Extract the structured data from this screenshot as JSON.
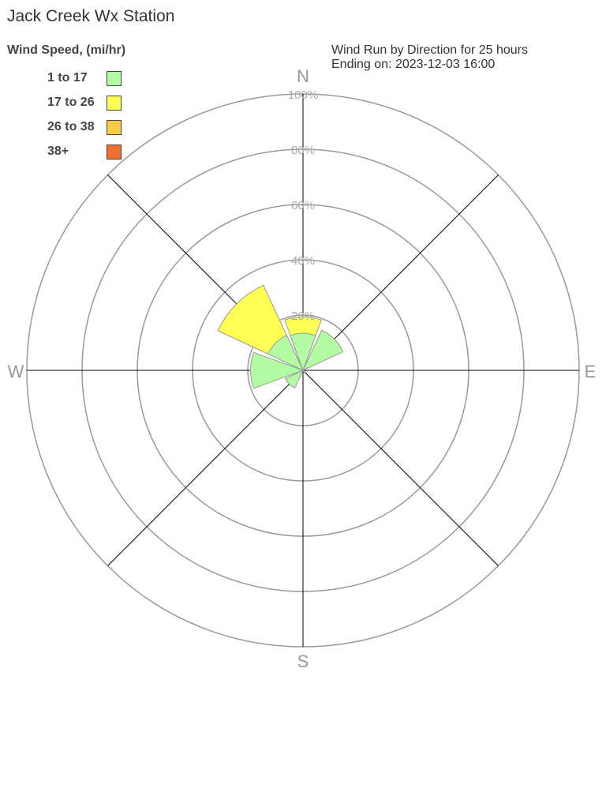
{
  "title": "Jack Creek Wx Station",
  "chart_data": {
    "type": "wind-rose",
    "legend_title": "Wind Speed, (mi/hr)",
    "subtitle_line1": "Wind Run by Direction for 25 hours",
    "subtitle_line2": "Ending on: 2023-12-03 16:00",
    "directions": [
      "N",
      "NE",
      "E",
      "SE",
      "S",
      "SW",
      "W",
      "NW"
    ],
    "compass_labels": {
      "N": "N",
      "E": "E",
      "S": "S",
      "W": "W"
    },
    "ring_labels": [
      "20%",
      "40%",
      "60%",
      "80%",
      "100%"
    ],
    "ring_values": [
      20,
      40,
      60,
      80,
      100
    ],
    "rmax": 100,
    "series": [
      {
        "name": "1 to 17",
        "color": "#b3fca3",
        "values": [
          13.4,
          16,
          0,
          1,
          0,
          7,
          19,
          14
        ]
      },
      {
        "name": "17 to 26",
        "color": "#ffff55",
        "values": [
          6,
          0,
          0,
          0,
          0,
          0,
          0,
          20
        ]
      },
      {
        "name": "26 to 38",
        "color": "#f7cb47",
        "values": [
          0,
          0,
          0,
          0,
          0,
          0,
          0,
          0
        ]
      },
      {
        "name": "38+",
        "color": "#ee6f2e",
        "values": [
          0,
          0,
          0,
          0,
          0,
          0,
          0,
          0
        ]
      }
    ]
  }
}
